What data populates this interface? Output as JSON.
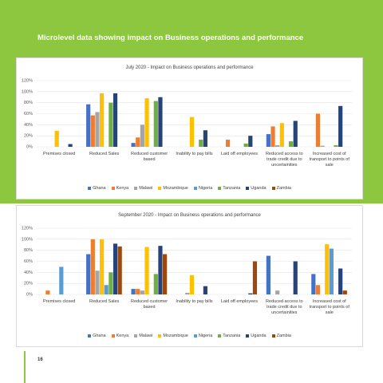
{
  "header": "Microlevel data showing impact on Business operations and performance",
  "page_number": "16",
  "chart_data": [
    {
      "type": "bar",
      "title": "July 2020 - Impact on Business operations and performance",
      "categories": [
        "Premises closed",
        "Reduced Sales",
        "Reduced customer based",
        "Inability to pay bills",
        "Laid off employees",
        "Reduced access to trade credit due to uncertainities",
        "Increased cost of transport to points of sale"
      ],
      "series": [
        {
          "name": "Ghana",
          "color": "#4472c4",
          "values": [
            0,
            77,
            7,
            0,
            0,
            23,
            0
          ]
        },
        {
          "name": "Kenya",
          "color": "#ed7d31",
          "values": [
            0,
            57,
            17,
            0,
            13,
            37,
            60
          ]
        },
        {
          "name": "Malawi",
          "color": "#a5a5a5",
          "values": [
            0,
            63,
            40,
            0,
            0,
            3,
            2
          ]
        },
        {
          "name": "Mozambique",
          "color": "#ffc000",
          "values": [
            29,
            97,
            88,
            54,
            0,
            43,
            0
          ]
        },
        {
          "name": "Nigeria",
          "color": "#5b9bd5",
          "values": [
            0,
            0,
            0,
            0,
            0,
            0,
            0
          ]
        },
        {
          "name": "Tanzania",
          "color": "#70ad47",
          "values": [
            0,
            80,
            83,
            13,
            6,
            10,
            3
          ]
        },
        {
          "name": "Uganda",
          "color": "#264478",
          "values": [
            5,
            97,
            90,
            30,
            20,
            47,
            74
          ]
        },
        {
          "name": "Zambia",
          "color": "#9e480e",
          "values": [
            0,
            0,
            0,
            0,
            0,
            0,
            0
          ]
        }
      ],
      "ylim": [
        0,
        120
      ],
      "yticks": [
        {
          "value": 0,
          "label": "0%"
        },
        {
          "value": 20,
          "label": "20%"
        },
        {
          "value": 40,
          "label": "40%"
        },
        {
          "value": 60,
          "label": "60%"
        },
        {
          "value": 80,
          "label": "80%"
        },
        {
          "value": 100,
          "label": "100%"
        },
        {
          "value": 120,
          "label": "120%"
        }
      ],
      "grid": true,
      "legend": "bottom"
    },
    {
      "type": "bar",
      "title": "September 2020 - Impact on Business operations and performance",
      "categories": [
        "Premises closed",
        "Reduced Sales",
        "Reduced customer based",
        "Inability to pay bills",
        "Laid off employees",
        "Reduced access to trade credit due to uncertainities",
        "Increased cost of transport to points of sale"
      ],
      "series": [
        {
          "name": "Ghana",
          "color": "#4472c4",
          "values": [
            0,
            73,
            10,
            0,
            0,
            70,
            37
          ]
        },
        {
          "name": "Kenya",
          "color": "#ed7d31",
          "values": [
            7,
            100,
            10,
            0,
            0,
            0,
            17
          ]
        },
        {
          "name": "Malawi",
          "color": "#a5a5a5",
          "values": [
            0,
            43,
            7,
            3,
            0,
            7,
            0
          ]
        },
        {
          "name": "Mozambique",
          "color": "#ffc000",
          "values": [
            0,
            100,
            86,
            35,
            0,
            0,
            91
          ]
        },
        {
          "name": "Nigeria",
          "color": "#5b9bd5",
          "values": [
            50,
            17,
            0,
            0,
            0,
            0,
            83
          ]
        },
        {
          "name": "Tanzania",
          "color": "#70ad47",
          "values": [
            0,
            40,
            37,
            0,
            0,
            0,
            0
          ]
        },
        {
          "name": "Uganda",
          "color": "#264478",
          "values": [
            0,
            92,
            88,
            15,
            2,
            60,
            47
          ]
        },
        {
          "name": "Zambia",
          "color": "#9e480e",
          "values": [
            0,
            87,
            73,
            0,
            60,
            0,
            7
          ]
        }
      ],
      "ylim": [
        0,
        120
      ],
      "yticks": [
        {
          "value": 0,
          "label": "0%"
        },
        {
          "value": 20,
          "label": "20%"
        },
        {
          "value": 40,
          "label": "40%"
        },
        {
          "value": 60,
          "label": "60%"
        },
        {
          "value": 80,
          "label": "80%"
        },
        {
          "value": 100,
          "label": "100%"
        },
        {
          "value": 120,
          "label": "120%"
        }
      ],
      "grid": true,
      "legend": "bottom"
    }
  ]
}
